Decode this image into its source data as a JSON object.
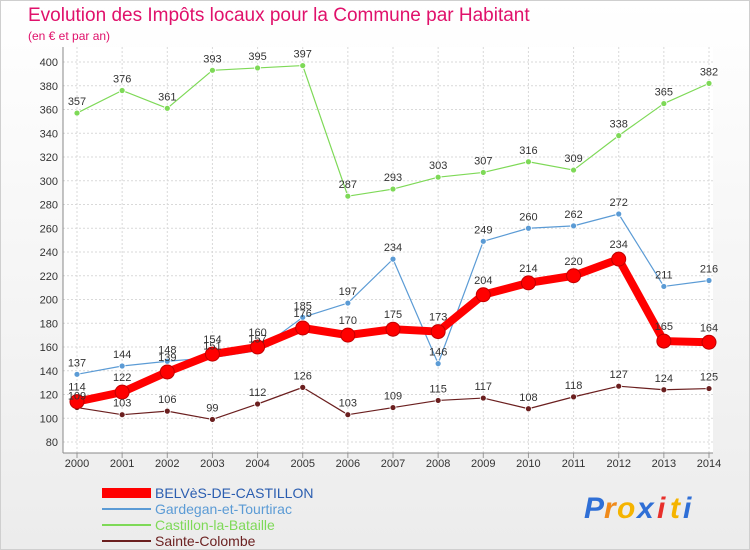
{
  "chart_data": {
    "type": "line",
    "title": "Evolution des Impôts locaux pour la Commune par Habitant",
    "subtitle": "(en € et par an)",
    "xlabel": "",
    "ylabel": "",
    "x": [
      "2000",
      "2001",
      "2002",
      "2003",
      "2004",
      "2005",
      "2006",
      "2007",
      "2008",
      "2009",
      "2010",
      "2011",
      "2012",
      "2013",
      "2014"
    ],
    "ylim": [
      80,
      400
    ],
    "ytick_step": 20,
    "grid": true,
    "legend_position": "bottom-left",
    "series": [
      {
        "name": "BELVèS-DE-CASTILLON",
        "color": "#ff0000",
        "emphasis": true,
        "values": [
          114,
          122,
          139,
          154,
          160,
          176,
          170,
          175,
          173,
          204,
          214,
          220,
          234,
          165,
          164
        ],
        "labels": [
          "114",
          "122",
          "139",
          "154",
          "160",
          "176",
          "170",
          "175",
          "173",
          "204",
          "214",
          "220",
          "234",
          "165",
          "164"
        ]
      },
      {
        "name": "Gardegan-et-Tourtirac",
        "color": "#5b9bd5",
        "values": [
          137,
          144,
          148,
          151,
          157,
          185,
          197,
          234,
          146,
          249,
          260,
          262,
          272,
          211,
          216
        ],
        "labels": [
          "137",
          "144",
          "148",
          "151",
          "157",
          "185",
          "197",
          "234",
          "146",
          "249",
          "260",
          "262",
          "272",
          "211",
          "216"
        ]
      },
      {
        "name": "Castillon-la-Bataille",
        "color": "#7ed957",
        "values": [
          357,
          376,
          361,
          393,
          395,
          397,
          287,
          293,
          303,
          307,
          316,
          309,
          338,
          365,
          382
        ],
        "labels": [
          "357",
          "376",
          "361",
          "393",
          "395",
          "397",
          "287",
          "293",
          "303",
          "307",
          "316",
          "309",
          "338",
          "365",
          "382"
        ]
      },
      {
        "name": "Sainte-Colombe",
        "color": "#6b1f1f",
        "values": [
          109,
          103,
          106,
          99,
          112,
          126,
          103,
          109,
          115,
          117,
          108,
          118,
          127,
          124,
          125
        ],
        "labels": [
          "109",
          "103",
          "106",
          "99",
          "112",
          "126",
          "103",
          "109",
          "115",
          "117",
          "108",
          "118",
          "127",
          "124",
          "125"
        ]
      }
    ]
  },
  "logo": {
    "text": "Proxiti",
    "letters": [
      "P",
      "r",
      "o",
      "x",
      "i",
      "t",
      "i"
    ]
  }
}
